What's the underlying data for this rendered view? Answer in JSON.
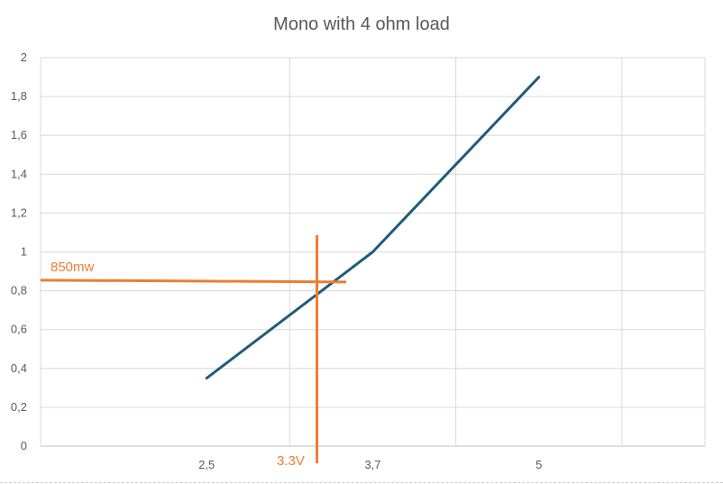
{
  "chart_data": {
    "type": "line",
    "title": "Mono with 4 ohm load",
    "x_ticks": [
      "2,5",
      "3,7",
      "5"
    ],
    "y_ticks": [
      "0",
      "0,2",
      "0,4",
      "0,6",
      "0,8",
      "1",
      "1,2",
      "1,4",
      "1,6",
      "1,8",
      "2"
    ],
    "ylim": [
      0,
      2
    ],
    "grid": true,
    "series": [
      {
        "values": [
          0.35,
          1.0,
          1.9
        ],
        "color": "#1F5C7A"
      }
    ],
    "annotations": {
      "power_label": "850mw",
      "voltage_label": "3.3V",
      "power_value": 0.85,
      "voltage_value": 3.3,
      "color": "#ED7D31"
    }
  }
}
